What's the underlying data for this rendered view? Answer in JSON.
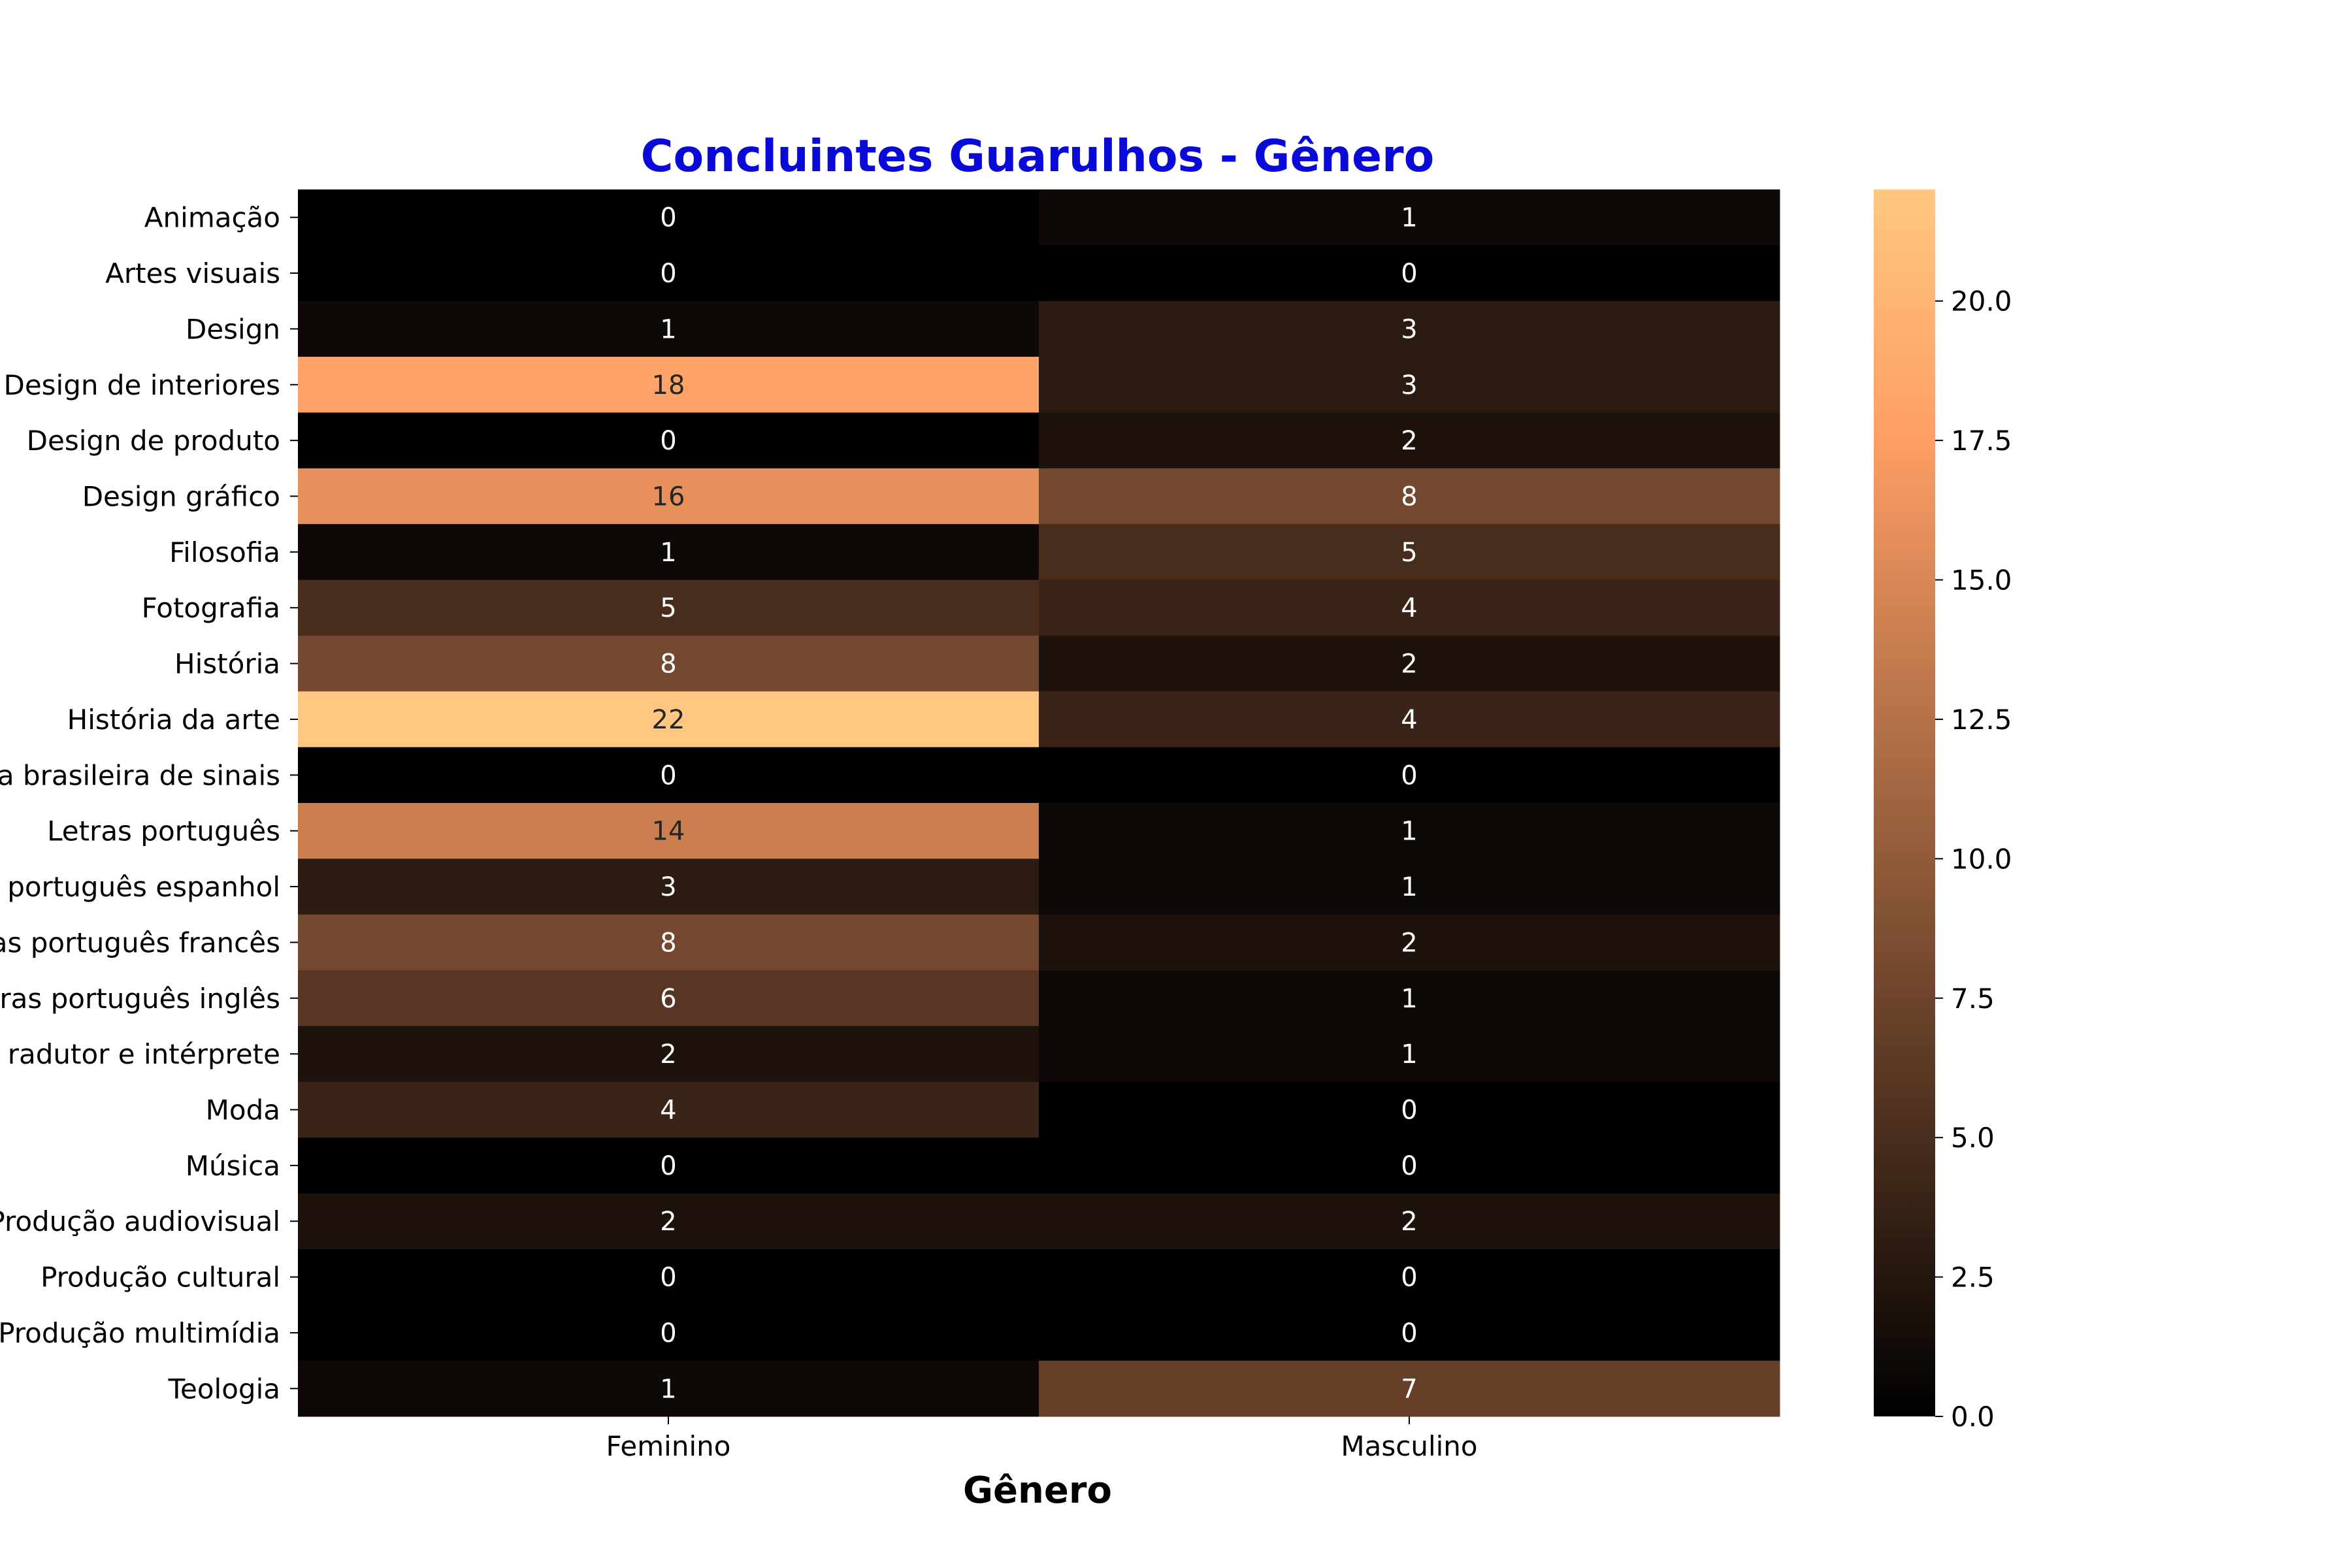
{
  "chart_data": {
    "type": "heatmap",
    "title": "Concluintes Guarulhos - Gênero",
    "title_color": "#0a0ad8",
    "xlabel": "Gênero",
    "ylabel": "",
    "columns": [
      "Feminino",
      "Masculino"
    ],
    "rows": [
      "Animação",
      "Artes visuais",
      "Design",
      "Design de interiores",
      "Design de produto",
      "Design gráfico",
      "Filosofia",
      "Fotografia",
      "História",
      "História da arte",
      "a brasileira de sinais",
      "Letras português",
      "português espanhol",
      "as português francês",
      "ras português inglês",
      "radutor e intérprete",
      "Moda",
      "Música",
      "Produção audiovisual",
      "Produção cultural",
      "Produção multimídia",
      "Teologia"
    ],
    "values": [
      [
        0,
        1
      ],
      [
        0,
        0
      ],
      [
        1,
        3
      ],
      [
        18,
        3
      ],
      [
        0,
        2
      ],
      [
        16,
        8
      ],
      [
        1,
        5
      ],
      [
        5,
        4
      ],
      [
        8,
        2
      ],
      [
        22,
        4
      ],
      [
        0,
        0
      ],
      [
        14,
        1
      ],
      [
        3,
        1
      ],
      [
        8,
        2
      ],
      [
        6,
        1
      ],
      [
        2,
        1
      ],
      [
        4,
        0
      ],
      [
        0,
        0
      ],
      [
        2,
        2
      ],
      [
        0,
        0
      ],
      [
        0,
        0
      ],
      [
        1,
        7
      ]
    ],
    "colorscale": "copper",
    "colorbar": {
      "range": [
        0,
        22
      ],
      "ticks": [
        0,
        2.5,
        5,
        7.5,
        10,
        12.5,
        15,
        17.5,
        20
      ],
      "tick_labels": [
        "0.0",
        "2.5",
        "5.0",
        "7.5",
        "10.0",
        "12.5",
        "15.0",
        "17.5",
        "20.0"
      ]
    },
    "annotate_values": true
  }
}
